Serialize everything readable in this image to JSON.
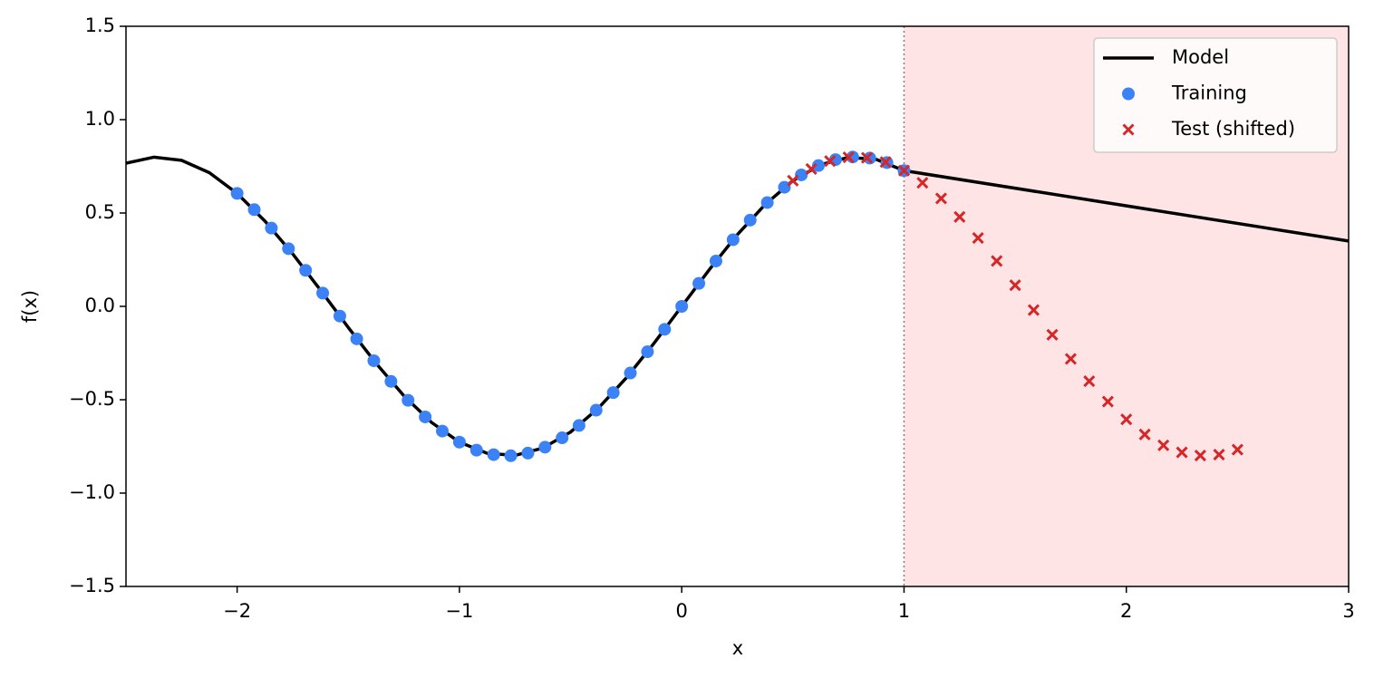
{
  "chart_data": {
    "type": "line",
    "xlabel": "x",
    "ylabel": "f(x)",
    "xlim": [
      -2.5,
      3
    ],
    "ylim": [
      -1.5,
      1.5
    ],
    "xticks": [
      {
        "value": -2,
        "label": "−2"
      },
      {
        "value": -1,
        "label": "−1"
      },
      0,
      1,
      2,
      3
    ],
    "yticks": [
      {
        "value": -1.5,
        "label": "−1.5"
      },
      {
        "value": -1.0,
        "label": "−1.0"
      },
      {
        "value": -0.5,
        "label": "−0.5"
      },
      {
        "value": 0,
        "label": "0.0"
      },
      0.5,
      {
        "value": 1.0,
        "label": "1.0"
      },
      1.5
    ],
    "legend": "upper right",
    "shaded_region": {
      "x": [
        1,
        3
      ],
      "color": "#ffe4e6",
      "edge_color": "#a07070"
    },
    "series": [
      {
        "name": "Model",
        "style": "line",
        "color": "#000000",
        "x": [
          -2.5,
          -2.375,
          -2.25,
          -2.125,
          -2.0,
          -1.875,
          -1.75,
          -1.625,
          -1.5,
          -1.375,
          -1.25,
          -1.125,
          -1.0,
          -0.875,
          -0.75,
          -0.625,
          -0.5,
          -0.375,
          -0.25,
          -0.125,
          0,
          0.125,
          0.25,
          0.375,
          0.5,
          0.625,
          0.75,
          0.875,
          1.0,
          3
        ],
        "values": [
          0.767,
          0.799,
          0.782,
          0.716,
          0.605,
          0.457,
          0.281,
          0.087,
          -0.113,
          -0.305,
          -0.479,
          -0.622,
          -0.727,
          -0.787,
          -0.798,
          -0.759,
          -0.673,
          -0.545,
          -0.384,
          -0.198,
          0,
          0.198,
          0.384,
          0.545,
          0.673,
          0.759,
          0.798,
          0.787,
          0.727,
          0.35
        ]
      },
      {
        "name": "Training",
        "style": "circle",
        "color": "#3b82f6",
        "x": [
          -2,
          -1.923,
          -1.846,
          -1.769,
          -1.692,
          -1.615,
          -1.538,
          -1.462,
          -1.385,
          -1.308,
          -1.231,
          -1.154,
          -1.077,
          -1.0,
          -0.923,
          -0.846,
          -0.769,
          -0.692,
          -0.615,
          -0.538,
          -0.462,
          -0.385,
          -0.308,
          -0.231,
          -0.154,
          -0.077,
          0,
          0.077,
          0.154,
          0.231,
          0.308,
          0.385,
          0.462,
          0.538,
          0.615,
          0.692,
          0.769,
          0.846,
          0.923,
          1.0
        ],
        "values": [
          0.605,
          0.518,
          0.419,
          0.309,
          0.193,
          0.071,
          -0.052,
          -0.174,
          -0.291,
          -0.402,
          -0.503,
          -0.592,
          -0.668,
          -0.727,
          -0.77,
          -0.794,
          -0.8,
          -0.786,
          -0.754,
          -0.704,
          -0.638,
          -0.556,
          -0.462,
          -0.357,
          -0.243,
          -0.123,
          0,
          0.123,
          0.243,
          0.357,
          0.462,
          0.556,
          0.638,
          0.704,
          0.754,
          0.786,
          0.8,
          0.794,
          0.77,
          0.727
        ]
      },
      {
        "name": "Test (shifted)",
        "style": "cross",
        "color": "#d62728",
        "x": [
          0.5,
          0.583,
          0.667,
          0.75,
          0.833,
          0.917,
          1.0,
          1.083,
          1.167,
          1.25,
          1.333,
          1.417,
          1.5,
          1.583,
          1.667,
          1.75,
          1.833,
          1.917,
          2.0,
          2.083,
          2.167,
          2.25,
          2.333,
          2.417,
          2.5
        ],
        "values": [
          0.673,
          0.736,
          0.778,
          0.798,
          0.796,
          0.773,
          0.727,
          0.662,
          0.578,
          0.479,
          0.366,
          0.243,
          0.113,
          -0.02,
          -0.152,
          -0.281,
          -0.401,
          -0.51,
          -0.605,
          -0.686,
          -0.744,
          -0.782,
          -0.799,
          -0.794,
          -0.767
        ]
      }
    ]
  }
}
